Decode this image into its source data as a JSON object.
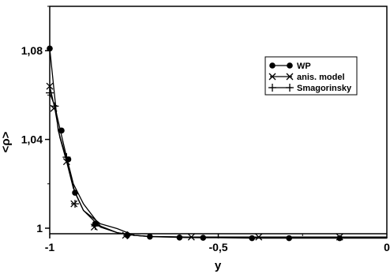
{
  "chart_data": {
    "type": "line",
    "xlabel": "y",
    "ylabel": "<ρ>",
    "xlim": [
      -1,
      0
    ],
    "ylim": [
      0.9975,
      1.1
    ],
    "xticks": [
      {
        "value": -1,
        "label": "-1"
      },
      {
        "value": -0.5,
        "label": "-0,5"
      },
      {
        "value": 0,
        "label": "0"
      }
    ],
    "yticks": [
      {
        "value": 1.0,
        "label": "1"
      },
      {
        "value": 1.04,
        "label": "1,04"
      },
      {
        "value": 1.08,
        "label": "1,08"
      }
    ],
    "grid": false,
    "legend_position": "top-right",
    "series": [
      {
        "name": "WP",
        "marker": "circle",
        "x": [
          -1.0,
          -0.975,
          -0.95,
          -0.925,
          -0.9,
          -0.85,
          -0.8,
          -0.75,
          -0.7,
          -0.65,
          -0.6,
          -0.55,
          -0.5,
          -0.45,
          -0.4,
          -0.35,
          -0.3,
          -0.25,
          -0.2,
          -0.15,
          -0.1,
          -0.05,
          0.0
        ],
        "y": [
          1.081,
          1.044,
          1.031,
          1.016,
          1.008,
          1.002,
          0.9998,
          0.9968,
          0.9962,
          0.996,
          0.9958,
          0.9957,
          0.9957,
          0.9956,
          0.9955,
          0.9955,
          0.9955,
          0.9955,
          0.9955,
          0.9955,
          0.9955,
          0.9955,
          0.9955
        ],
        "marker_x": [
          -1.0,
          -0.965,
          -0.945,
          -0.925,
          -0.865,
          -0.77,
          -0.703,
          -0.615,
          -0.545,
          -0.4,
          -0.29,
          -0.14
        ],
        "marker_y": [
          1.081,
          1.044,
          1.031,
          1.016,
          1.002,
          0.9968,
          0.9962,
          0.9958,
          0.9957,
          0.9955,
          0.9955,
          0.9955
        ]
      },
      {
        "name": "anis. model",
        "marker": "x",
        "x": [
          -1.0,
          -0.985,
          -0.97,
          -0.95,
          -0.93,
          -0.9,
          -0.85,
          -0.8,
          -0.75,
          -0.7,
          -0.6,
          -0.5,
          -0.4,
          -0.3,
          -0.2,
          -0.1,
          0.0
        ],
        "y": [
          1.064,
          1.054,
          1.041,
          1.03,
          1.018,
          1.008,
          1.0005,
          0.998,
          0.9968,
          0.9962,
          0.996,
          0.996,
          0.996,
          0.996,
          0.996,
          0.996,
          0.996
        ],
        "marker_x": [
          -1.0,
          -0.988,
          -0.95,
          -0.928,
          -0.868,
          -0.775,
          -0.58,
          -0.38,
          -0.14
        ],
        "marker_y": [
          1.064,
          1.054,
          1.03,
          1.011,
          1.0005,
          0.9968,
          0.996,
          0.996,
          0.996
        ]
      },
      {
        "name": "Smagorinsky",
        "marker": "plus",
        "x": [
          -1.0,
          -0.985,
          -0.97,
          -0.95,
          -0.93,
          -0.9,
          -0.85,
          -0.8,
          -0.75,
          -0.7,
          -0.6,
          -0.5,
          -0.4,
          -0.3,
          -0.2,
          -0.1,
          0.0
        ],
        "y": [
          1.061,
          1.055,
          1.045,
          1.032,
          1.02,
          1.011,
          1.001,
          0.998,
          0.9968,
          0.9963,
          0.996,
          0.996,
          0.996,
          0.996,
          0.996,
          0.996,
          0.996
        ],
        "marker_x": [
          -1.0,
          -0.985,
          -0.95,
          -0.925,
          -0.865,
          -0.77
        ],
        "marker_y": [
          1.061,
          1.055,
          1.032,
          1.011,
          1.001,
          0.9968
        ]
      }
    ]
  }
}
